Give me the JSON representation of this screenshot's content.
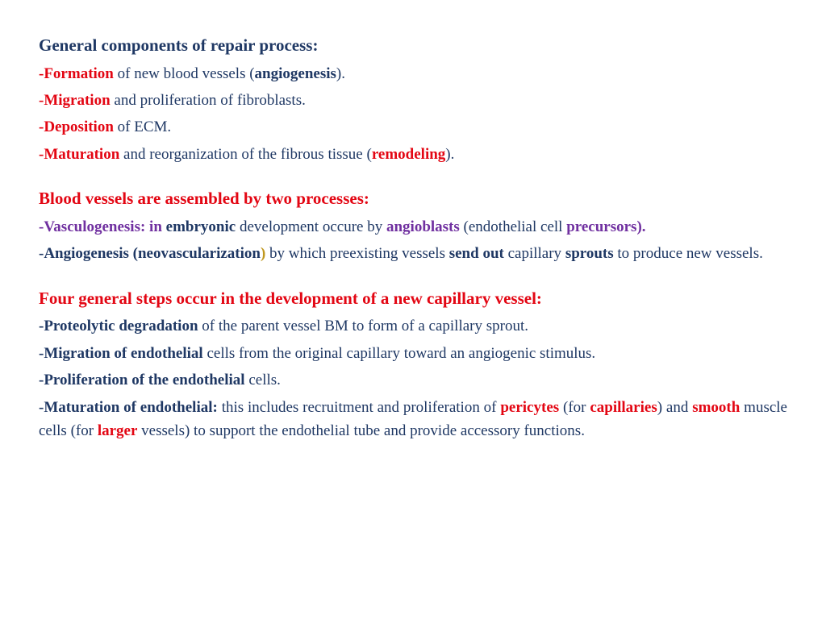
{
  "s1": {
    "heading": "General components of repair process:",
    "l1_key": "-Formation",
    "l1_a": " of new blood vessels (",
    "l1_term": "angiogenesis",
    "l1_b": ").",
    "l2_key": "-Migration",
    "l2_rest": " and proliferation of fibroblasts.",
    "l3_key": "-Deposition",
    "l3_rest": " of ECM.",
    "l4_key": "-Maturation",
    "l4_a": " and reorganization of the fibrous tissue (",
    "l4_term": "remodeling",
    "l4_b": ")."
  },
  "s2": {
    "heading": "Blood vessels are assembled by two processes:",
    "l1_a": "-Vasculogenesis: in ",
    "l1_b": "embryonic",
    "l1_c": " development occure by ",
    "l1_d": "angioblasts",
    "l1_e": " (endothelial cell ",
    "l1_f": "precursors).",
    "l2_a": "-Angiogenesis (neovascularization",
    "l2_paren": ")",
    "l2_b": " by which preexisting vessels ",
    "l2_c": "send out",
    "l2_d": " capillary ",
    "l2_e": "sprouts",
    "l2_f": " to produce new vessels."
  },
  "s3": {
    "heading": "Four general steps occur in the development of a new capillary vessel:",
    "l1_key": "-Proteolytic degradation",
    "l1_rest": " of the parent vessel BM to form of a capillary sprout.",
    "l2_key": "-Migration of endothelial",
    "l2_rest": " cells from the original capillary toward an angiogenic stimulus.",
    "l3_key": "-Proliferation of the endothelial",
    "l3_rest": " cells.",
    "l4_key": "-Maturation of endothelial:",
    "l4_a": " this includes recruitment and proliferation of ",
    "l4_b": "pericytes",
    "l4_c": " (for ",
    "l4_d": "capillaries",
    "l4_e": ") and ",
    "l4_f": "smooth",
    "l4_g": " muscle cells (for ",
    "l4_h": "larger",
    "l4_i": " vessels) to support the endothelial tube and provide accessory functions."
  }
}
